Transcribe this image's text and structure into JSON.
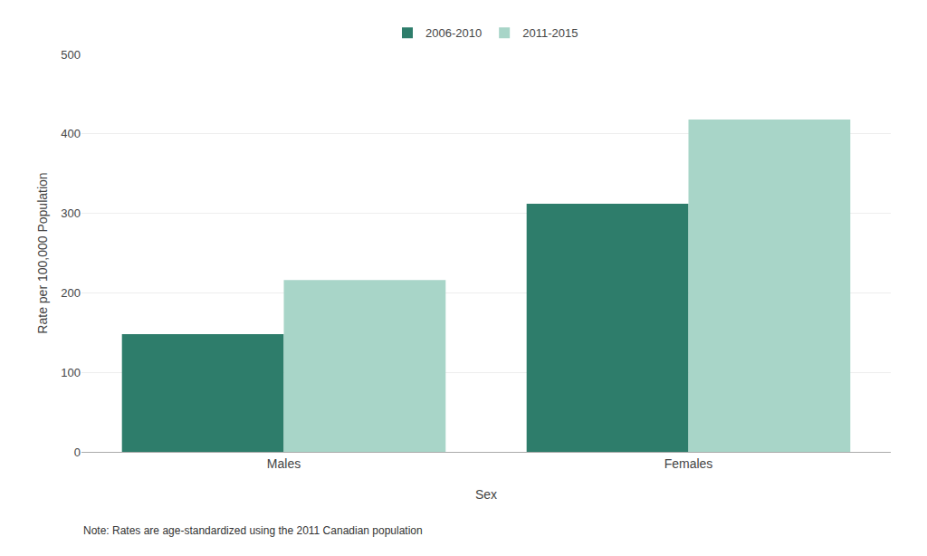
{
  "chart_data": {
    "type": "bar",
    "categories": [
      "Males",
      "Females"
    ],
    "series": [
      {
        "name": "2006-2010",
        "color": "#2e7d6b",
        "values": [
          148,
          312
        ]
      },
      {
        "name": "2011-2015",
        "color": "#a8d5c8",
        "values": [
          216,
          418
        ]
      }
    ],
    "xlabel": "Sex",
    "ylabel": "Rate per 100,000 Population",
    "ylim": [
      0,
      500
    ],
    "yticks": [
      0,
      100,
      200,
      300,
      400,
      500
    ],
    "grid": true,
    "legend": "top",
    "annotations": [
      "Note: Rates are age-standardized using the 2011 Canadian population"
    ]
  }
}
